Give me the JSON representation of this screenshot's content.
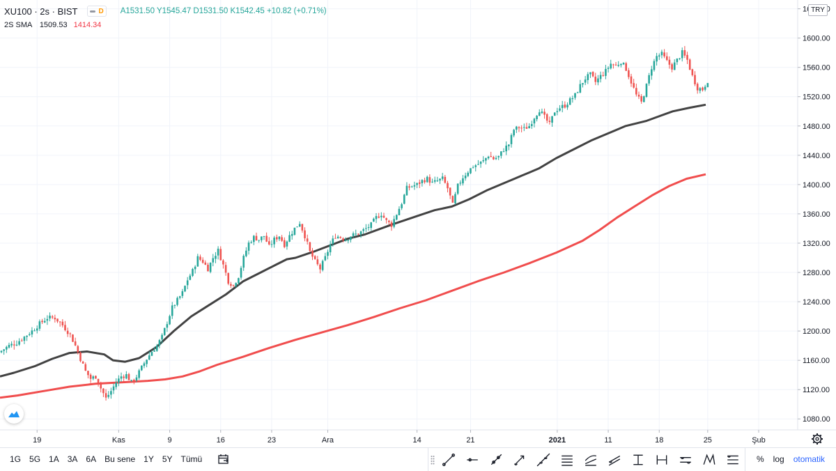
{
  "header": {
    "symbol": "XU100 · 2s · BIST",
    "open": "A1531.50",
    "high": "Y1545.47",
    "low": "D1531.50",
    "close": "K1542.45",
    "change": "+10.82 (+0.71%)",
    "flag": "D"
  },
  "indicator": {
    "name": "2S SMA",
    "value1": "1509.53",
    "value2": "1414.34"
  },
  "currency_label": "TRY",
  "colors": {
    "up": "#26a69a",
    "down": "#ef5350",
    "sma_fast": "#424242",
    "sma_slow": "#f04d4d",
    "accent": "#2962ff"
  },
  "bottom": {
    "ranges": [
      "1G",
      "5G",
      "1A",
      "3A",
      "6A",
      "Bu sene",
      "1Y",
      "5Y",
      "Tümü"
    ],
    "percent": "%",
    "log": "log",
    "auto": "otomatik"
  },
  "tools": [
    "trend-line-icon",
    "horizontal-line-icon",
    "ray-icon",
    "arrow-icon",
    "extended-line-icon",
    "parallel-channel-icon",
    "regression-trend-icon",
    "flat-top-icon",
    "price-range-icon",
    "date-range-icon",
    "long-position-icon",
    "pattern-icon",
    "fib-retracement-icon"
  ],
  "chart_data": {
    "type": "candlestick",
    "y_axis_ticks": [
      "1640.00",
      "1600.00",
      "1560.00",
      "1520.00",
      "1480.00",
      "1440.00",
      "1400.00",
      "1360.00",
      "1320.00",
      "1280.00",
      "1240.00",
      "1200.00",
      "1160.00",
      "1120.00",
      "1080.00"
    ],
    "ylim": [
      1065,
      1652
    ],
    "x_axis_ticks": [
      "19",
      "Kas",
      "9",
      "16",
      "23",
      "Ara",
      "14",
      "21",
      "2021",
      "11",
      "18",
      "25",
      "Şub"
    ],
    "close_path": [
      [
        0,
        1173
      ],
      [
        3,
        1180
      ],
      [
        6,
        1184
      ],
      [
        9,
        1192
      ],
      [
        12,
        1200
      ],
      [
        15,
        1210
      ],
      [
        18,
        1218
      ],
      [
        21,
        1218
      ],
      [
        24,
        1208
      ],
      [
        27,
        1195
      ],
      [
        29,
        1180
      ],
      [
        31,
        1162
      ],
      [
        33,
        1145
      ],
      [
        35,
        1135
      ],
      [
        37,
        1138
      ],
      [
        39,
        1122
      ],
      [
        41,
        1108
      ],
      [
        43,
        1118
      ],
      [
        45,
        1130
      ],
      [
        47,
        1138
      ],
      [
        49,
        1140
      ],
      [
        51,
        1130
      ],
      [
        53,
        1138
      ],
      [
        55,
        1150
      ],
      [
        57,
        1162
      ],
      [
        59,
        1172
      ],
      [
        61,
        1180
      ],
      [
        63,
        1192
      ],
      [
        65,
        1212
      ],
      [
        67,
        1232
      ],
      [
        69,
        1242
      ],
      [
        71,
        1252
      ],
      [
        73,
        1270
      ],
      [
        75,
        1282
      ],
      [
        77,
        1300
      ],
      [
        79,
        1295
      ],
      [
        81,
        1285
      ],
      [
        83,
        1300
      ],
      [
        85,
        1310
      ],
      [
        87,
        1290
      ],
      [
        89,
        1268
      ],
      [
        91,
        1262
      ],
      [
        93,
        1275
      ],
      [
        95,
        1300
      ],
      [
        97,
        1320
      ],
      [
        99,
        1328
      ],
      [
        101,
        1325
      ],
      [
        103,
        1330
      ],
      [
        105,
        1315
      ],
      [
        107,
        1325
      ],
      [
        109,
        1330
      ],
      [
        111,
        1318
      ],
      [
        113,
        1330
      ],
      [
        115,
        1340
      ],
      [
        117,
        1348
      ],
      [
        119,
        1330
      ],
      [
        121,
        1308
      ],
      [
        123,
        1295
      ],
      [
        125,
        1285
      ],
      [
        127,
        1300
      ],
      [
        129,
        1318
      ],
      [
        131,
        1330
      ],
      [
        133,
        1328
      ],
      [
        135,
        1325
      ],
      [
        137,
        1330
      ],
      [
        139,
        1332
      ],
      [
        141,
        1335
      ],
      [
        143,
        1340
      ],
      [
        145,
        1345
      ],
      [
        147,
        1355
      ],
      [
        149,
        1360
      ],
      [
        151,
        1350
      ],
      [
        153,
        1345
      ],
      [
        155,
        1360
      ],
      [
        157,
        1375
      ],
      [
        159,
        1395
      ],
      [
        161,
        1398
      ],
      [
        163,
        1400
      ],
      [
        165,
        1405
      ],
      [
        167,
        1408
      ],
      [
        169,
        1402
      ],
      [
        171,
        1405
      ],
      [
        173,
        1408
      ],
      [
        175,
        1395
      ],
      [
        177,
        1372
      ],
      [
        179,
        1398
      ],
      [
        181,
        1410
      ],
      [
        183,
        1418
      ],
      [
        185,
        1425
      ],
      [
        187,
        1428
      ],
      [
        189,
        1432
      ],
      [
        191,
        1440
      ],
      [
        193,
        1435
      ],
      [
        195,
        1438
      ],
      [
        197,
        1448
      ],
      [
        199,
        1455
      ],
      [
        201,
        1475
      ],
      [
        203,
        1478
      ],
      [
        205,
        1476
      ],
      [
        207,
        1480
      ],
      [
        209,
        1492
      ],
      [
        211,
        1502
      ],
      [
        213,
        1492
      ],
      [
        215,
        1482
      ],
      [
        217,
        1500
      ],
      [
        219,
        1505
      ],
      [
        221,
        1508
      ],
      [
        223,
        1515
      ],
      [
        225,
        1522
      ],
      [
        227,
        1535
      ],
      [
        229,
        1545
      ],
      [
        231,
        1550
      ],
      [
        233,
        1540
      ],
      [
        235,
        1548
      ],
      [
        237,
        1555
      ],
      [
        239,
        1565
      ],
      [
        241,
        1562
      ],
      [
        243,
        1568
      ],
      [
        245,
        1558
      ],
      [
        247,
        1540
      ],
      [
        249,
        1522
      ],
      [
        251,
        1512
      ],
      [
        253,
        1535
      ],
      [
        255,
        1560
      ],
      [
        257,
        1575
      ],
      [
        259,
        1578
      ],
      [
        261,
        1568
      ],
      [
        263,
        1560
      ],
      [
        265,
        1570
      ],
      [
        267,
        1580
      ],
      [
        269,
        1570
      ],
      [
        271,
        1548
      ],
      [
        273,
        1532
      ],
      [
        275,
        1530
      ],
      [
        277,
        1542
      ]
    ],
    "series": [
      {
        "name": "SMA",
        "value": "1509.53",
        "values": [
          [
            0,
            1138
          ],
          [
            8,
            1143
          ],
          [
            20,
            1152
          ],
          [
            30,
            1162
          ],
          [
            40,
            1170
          ],
          [
            50,
            1172
          ],
          [
            60,
            1168
          ],
          [
            65,
            1160
          ],
          [
            72,
            1158
          ],
          [
            80,
            1163
          ],
          [
            90,
            1178
          ],
          [
            100,
            1200
          ],
          [
            110,
            1220
          ],
          [
            120,
            1235
          ],
          [
            130,
            1250
          ],
          [
            140,
            1268
          ],
          [
            150,
            1280
          ],
          [
            160,
            1292
          ],
          [
            165,
            1298
          ],
          [
            170,
            1300
          ],
          [
            180,
            1308
          ],
          [
            190,
            1317
          ],
          [
            200,
            1326
          ],
          [
            210,
            1332
          ],
          [
            225,
            1345
          ],
          [
            240,
            1357
          ],
          [
            250,
            1365
          ],
          [
            260,
            1370
          ],
          [
            270,
            1380
          ],
          [
            280,
            1392
          ],
          [
            290,
            1402
          ],
          [
            300,
            1412
          ],
          [
            310,
            1422
          ],
          [
            320,
            1436
          ],
          [
            330,
            1448
          ],
          [
            340,
            1460
          ],
          [
            350,
            1470
          ],
          [
            360,
            1480
          ],
          [
            372,
            1487
          ],
          [
            380,
            1494
          ],
          [
            387,
            1500
          ],
          [
            397,
            1505
          ],
          [
            406,
            1509
          ]
        ]
      },
      {
        "name": "SMA",
        "value": "1414.34",
        "values": [
          [
            0,
            1109
          ],
          [
            10,
            1112
          ],
          [
            25,
            1118
          ],
          [
            40,
            1124
          ],
          [
            55,
            1128
          ],
          [
            70,
            1130
          ],
          [
            85,
            1132
          ],
          [
            95,
            1134
          ],
          [
            105,
            1138
          ],
          [
            115,
            1145
          ],
          [
            125,
            1154
          ],
          [
            140,
            1165
          ],
          [
            155,
            1177
          ],
          [
            170,
            1188
          ],
          [
            185,
            1198
          ],
          [
            200,
            1208
          ],
          [
            215,
            1219
          ],
          [
            230,
            1231
          ],
          [
            245,
            1242
          ],
          [
            260,
            1255
          ],
          [
            275,
            1268
          ],
          [
            290,
            1280
          ],
          [
            305,
            1293
          ],
          [
            320,
            1307
          ],
          [
            335,
            1323
          ],
          [
            345,
            1338
          ],
          [
            355,
            1355
          ],
          [
            365,
            1370
          ],
          [
            375,
            1385
          ],
          [
            385,
            1398
          ],
          [
            395,
            1408
          ],
          [
            406,
            1414
          ]
        ]
      }
    ]
  }
}
